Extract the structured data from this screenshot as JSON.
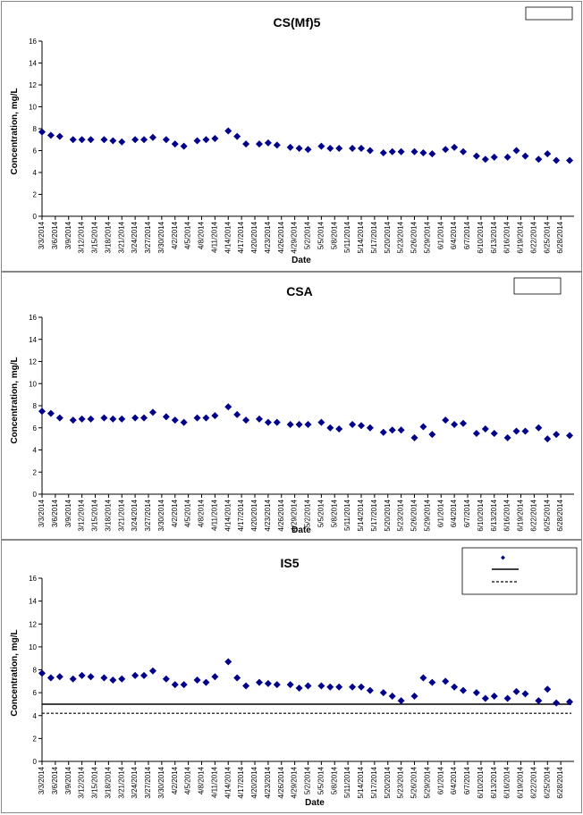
{
  "chart_data": [
    {
      "type": "scatter",
      "title": "CS(Mf)5",
      "xlabel": "Date",
      "ylabel": "Concentration, mg/L",
      "ylim": [
        0,
        16
      ],
      "yticks": [
        0,
        2,
        4,
        6,
        8,
        10,
        12,
        14,
        16
      ],
      "xlim": [
        "3/3/2014",
        "7/1/2014"
      ],
      "xticks": [
        "3/3/2014",
        "3/6/2014",
        "3/9/2014",
        "3/12/2014",
        "3/15/2014",
        "3/18/2014",
        "3/21/2014",
        "3/24/2014",
        "3/27/2014",
        "3/30/2014",
        "4/2/2014",
        "4/5/2014",
        "4/8/2014",
        "4/11/2014",
        "4/14/2014",
        "4/17/2014",
        "4/20/2014",
        "4/23/2014",
        "4/26/2014",
        "4/29/2014",
        "5/2/2014",
        "5/5/2014",
        "5/8/2014",
        "5/11/2014",
        "5/14/2014",
        "5/17/2014",
        "5/20/2014",
        "5/23/2014",
        "5/26/2014",
        "5/29/2014",
        "6/1/2014",
        "6/4/2014",
        "6/7/2014",
        "6/10/2014",
        "6/13/2014",
        "6/16/2014",
        "6/19/2014",
        "6/22/2014",
        "6/25/2014",
        "6/28/2014"
      ],
      "legend": "top-right",
      "marker_color": "#00008B",
      "series": [
        {
          "x": [
            "3/3/2014",
            "3/5/2014",
            "3/7/2014",
            "3/10/2014",
            "3/12/2014",
            "3/14/2014",
            "3/17/2014",
            "3/19/2014",
            "3/21/2014",
            "3/24/2014",
            "3/26/2014",
            "3/28/2014",
            "3/31/2014",
            "4/2/2014",
            "4/4/2014",
            "4/7/2014",
            "4/9/2014",
            "4/11/2014",
            "4/14/2014",
            "4/16/2014",
            "4/18/2014",
            "4/21/2014",
            "4/23/2014",
            "4/25/2014",
            "4/28/2014",
            "4/30/2014",
            "5/2/2014",
            "5/5/2014",
            "5/7/2014",
            "5/9/2014",
            "5/12/2014",
            "5/14/2014",
            "5/16/2014",
            "5/19/2014",
            "5/21/2014",
            "5/23/2014",
            "5/26/2014",
            "5/28/2014",
            "5/30/2014",
            "6/2/2014",
            "6/4/2014",
            "6/6/2014",
            "6/9/2014",
            "6/11/2014",
            "6/13/2014",
            "6/16/2014",
            "6/18/2014",
            "6/20/2014",
            "6/23/2014",
            "6/25/2014",
            "6/27/2014",
            "6/30/2014"
          ],
          "values": [
            7.7,
            7.4,
            7.3,
            7.0,
            7.0,
            7.0,
            7.0,
            6.9,
            6.8,
            7.0,
            7.0,
            7.2,
            7.0,
            6.6,
            6.4,
            6.9,
            7.0,
            7.1,
            7.8,
            7.3,
            6.6,
            6.6,
            6.7,
            6.5,
            6.3,
            6.2,
            6.1,
            6.4,
            6.2,
            6.2,
            6.2,
            6.2,
            6.0,
            5.8,
            5.9,
            5.9,
            5.9,
            5.8,
            5.7,
            6.1,
            6.3,
            5.9,
            5.5,
            5.2,
            5.4,
            5.4,
            6.0,
            5.5,
            5.2,
            5.7,
            5.1,
            5.1
          ]
        }
      ]
    },
    {
      "type": "scatter",
      "title": "CSA",
      "xlabel": "Date",
      "ylabel": "Concentration, mg/L",
      "ylim": [
        0,
        16
      ],
      "yticks": [
        0,
        2,
        4,
        6,
        8,
        10,
        12,
        14,
        16
      ],
      "xlim": [
        "3/3/2014",
        "7/1/2014"
      ],
      "xticks": [
        "3/3/2014",
        "3/6/2014",
        "3/9/2014",
        "3/12/2014",
        "3/15/2014",
        "3/18/2014",
        "3/21/2014",
        "3/24/2014",
        "3/27/2014",
        "3/30/2014",
        "4/2/2014",
        "4/5/2014",
        "4/8/2014",
        "4/11/2014",
        "4/14/2014",
        "4/17/2014",
        "4/20/2014",
        "4/23/2014",
        "4/26/2014",
        "4/29/2014",
        "5/2/2014",
        "5/5/2014",
        "5/8/2014",
        "5/11/2014",
        "5/14/2014",
        "5/17/2014",
        "5/20/2014",
        "5/23/2014",
        "5/26/2014",
        "5/29/2014",
        "6/1/2014",
        "6/4/2014",
        "6/7/2014",
        "6/10/2014",
        "6/13/2014",
        "6/16/2014",
        "6/19/2014",
        "6/22/2014",
        "6/25/2014",
        "6/28/2014"
      ],
      "legend": "top-right",
      "marker_color": "#00008B",
      "series": [
        {
          "x": [
            "3/3/2014",
            "3/5/2014",
            "3/7/2014",
            "3/10/2014",
            "3/12/2014",
            "3/14/2014",
            "3/17/2014",
            "3/19/2014",
            "3/21/2014",
            "3/24/2014",
            "3/26/2014",
            "3/28/2014",
            "3/31/2014",
            "4/2/2014",
            "4/4/2014",
            "4/7/2014",
            "4/9/2014",
            "4/11/2014",
            "4/14/2014",
            "4/16/2014",
            "4/18/2014",
            "4/21/2014",
            "4/23/2014",
            "4/25/2014",
            "4/28/2014",
            "4/30/2014",
            "5/2/2014",
            "5/5/2014",
            "5/7/2014",
            "5/9/2014",
            "5/12/2014",
            "5/14/2014",
            "5/16/2014",
            "5/19/2014",
            "5/21/2014",
            "5/23/2014",
            "5/26/2014",
            "5/28/2014",
            "5/30/2014",
            "6/2/2014",
            "6/4/2014",
            "6/6/2014",
            "6/9/2014",
            "6/11/2014",
            "6/13/2014",
            "6/16/2014",
            "6/18/2014",
            "6/20/2014",
            "6/23/2014",
            "6/25/2014",
            "6/27/2014",
            "6/30/2014"
          ],
          "values": [
            7.5,
            7.3,
            6.9,
            6.7,
            6.8,
            6.8,
            6.9,
            6.8,
            6.8,
            6.9,
            6.9,
            7.4,
            7.0,
            6.7,
            6.5,
            6.9,
            6.9,
            7.1,
            7.9,
            7.2,
            6.7,
            6.8,
            6.5,
            6.5,
            6.3,
            6.3,
            6.3,
            6.5,
            6.0,
            5.9,
            6.3,
            6.2,
            6.0,
            5.6,
            5.8,
            5.8,
            5.1,
            6.1,
            5.4,
            6.7,
            6.3,
            6.4,
            5.5,
            5.9,
            5.5,
            5.1,
            5.7,
            5.7,
            6.0,
            5.0,
            5.4,
            5.3
          ]
        }
      ]
    },
    {
      "type": "scatter",
      "title": "IS5",
      "xlabel": "Date",
      "ylabel": "Concentration, mg/L",
      "ylim": [
        0,
        16
      ],
      "yticks": [
        0,
        2,
        4,
        6,
        8,
        10,
        12,
        14,
        16
      ],
      "xlim": [
        "3/3/2014",
        "7/1/2014"
      ],
      "xticks": [
        "3/3/2014",
        "3/6/2014",
        "3/9/2014",
        "3/12/2014",
        "3/15/2014",
        "3/18/2014",
        "3/21/2014",
        "3/24/2014",
        "3/27/2014",
        "3/30/2014",
        "4/2/2014",
        "4/5/2014",
        "4/8/2014",
        "4/11/2014",
        "4/14/2014",
        "4/17/2014",
        "4/20/2014",
        "4/23/2014",
        "4/26/2014",
        "4/29/2014",
        "5/2/2014",
        "5/5/2014",
        "5/8/2014",
        "5/11/2014",
        "5/14/2014",
        "5/17/2014",
        "5/20/2014",
        "5/23/2014",
        "5/26/2014",
        "5/29/2014",
        "6/1/2014",
        "6/4/2014",
        "6/7/2014",
        "6/10/2014",
        "6/13/2014",
        "6/16/2014",
        "6/19/2014",
        "6/22/2014",
        "6/25/2014",
        "6/28/2014"
      ],
      "legend": "top-right",
      "marker_color": "#00008B",
      "reference_lines": [
        {
          "style": "solid",
          "value": 5.0
        },
        {
          "style": "dashed",
          "value": 4.2
        }
      ],
      "series": [
        {
          "x": [
            "3/3/2014",
            "3/5/2014",
            "3/7/2014",
            "3/10/2014",
            "3/12/2014",
            "3/14/2014",
            "3/17/2014",
            "3/19/2014",
            "3/21/2014",
            "3/24/2014",
            "3/26/2014",
            "3/28/2014",
            "3/31/2014",
            "4/2/2014",
            "4/4/2014",
            "4/7/2014",
            "4/9/2014",
            "4/11/2014",
            "4/14/2014",
            "4/16/2014",
            "4/18/2014",
            "4/21/2014",
            "4/23/2014",
            "4/25/2014",
            "4/28/2014",
            "4/30/2014",
            "5/2/2014",
            "5/5/2014",
            "5/7/2014",
            "5/9/2014",
            "5/12/2014",
            "5/14/2014",
            "5/16/2014",
            "5/19/2014",
            "5/21/2014",
            "5/23/2014",
            "5/26/2014",
            "5/28/2014",
            "5/30/2014",
            "6/2/2014",
            "6/4/2014",
            "6/6/2014",
            "6/9/2014",
            "6/11/2014",
            "6/13/2014",
            "6/16/2014",
            "6/18/2014",
            "6/20/2014",
            "6/23/2014",
            "6/25/2014",
            "6/27/2014",
            "6/30/2014"
          ],
          "values": [
            7.7,
            7.3,
            7.4,
            7.2,
            7.5,
            7.4,
            7.3,
            7.1,
            7.2,
            7.5,
            7.5,
            7.9,
            7.2,
            6.7,
            6.7,
            7.1,
            6.9,
            7.4,
            8.7,
            7.3,
            6.6,
            6.9,
            6.8,
            6.7,
            6.7,
            6.4,
            6.6,
            6.6,
            6.5,
            6.5,
            6.5,
            6.5,
            6.2,
            6.0,
            5.7,
            5.3,
            5.7,
            7.3,
            6.9,
            7.0,
            6.5,
            6.2,
            6.0,
            5.5,
            5.7,
            5.5,
            6.1,
            5.9,
            5.3,
            6.3,
            5.1,
            5.2
          ]
        }
      ]
    }
  ]
}
